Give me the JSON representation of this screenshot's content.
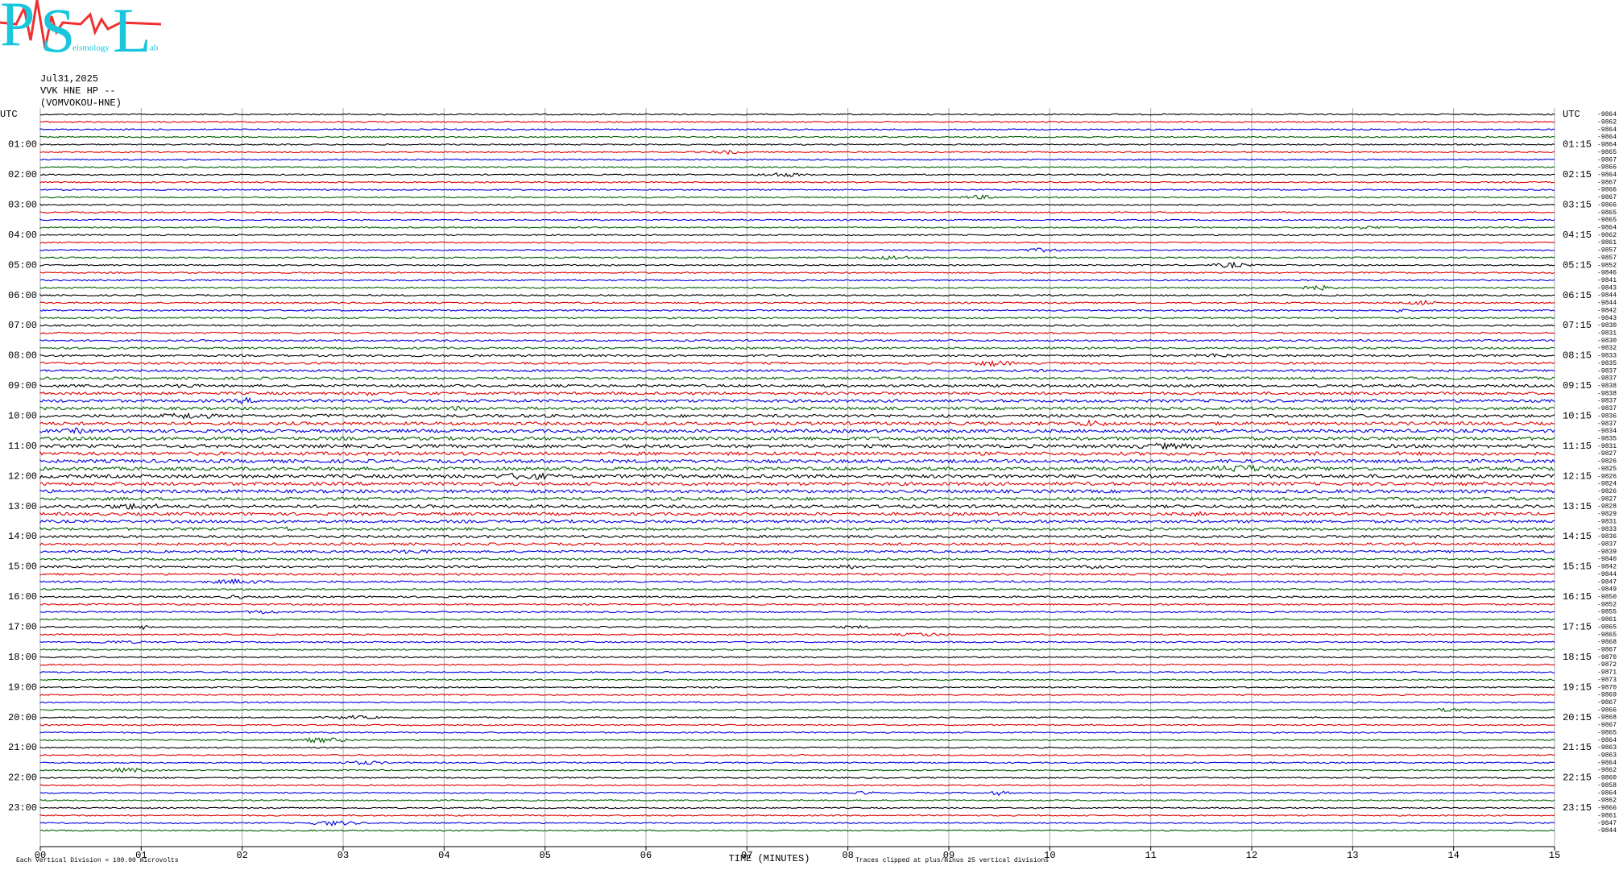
{
  "logo": {
    "letters": [
      "P",
      "S",
      "L"
    ],
    "small": [
      "eismology",
      "ab"
    ]
  },
  "header": {
    "date": "Jul31,2025",
    "station": "VVK HNE HP --",
    "channel": "(VOMVOKOU-HNE)"
  },
  "left_labels": [
    "UTC",
    "01:00",
    "02:00",
    "03:00",
    "04:00",
    "05:00",
    "06:00",
    "07:00",
    "08:00",
    "09:00",
    "10:00",
    "11:00",
    "12:00",
    "13:00",
    "14:00",
    "15:00",
    "16:00",
    "17:00",
    "18:00",
    "19:00",
    "20:00",
    "21:00",
    "22:00",
    "23:00"
  ],
  "right_labels": [
    "UTC",
    "01:15",
    "02:15",
    "03:15",
    "04:15",
    "05:15",
    "06:15",
    "07:15",
    "08:15",
    "09:15",
    "10:15",
    "11:15",
    "12:15",
    "13:15",
    "14:15",
    "15:15",
    "16:15",
    "17:15",
    "18:15",
    "19:15",
    "20:15",
    "21:15",
    "22:15",
    "23:15"
  ],
  "trace_offsets": [
    -9864,
    -9862,
    -9864,
    -9864,
    -9864,
    -9865,
    -9867,
    -9866,
    -9864,
    -9867,
    -9866,
    -9867,
    -9866,
    -9865,
    -9865,
    -9864,
    -9862,
    -9861,
    -9857,
    -9857,
    -9852,
    -9846,
    -9841,
    -9843,
    -9844,
    -9844,
    -9842,
    -9843,
    -9830,
    -9831,
    -9830,
    -9832,
    -9833,
    -9835,
    -9837,
    -9837,
    -9838,
    -9838,
    -9837,
    -9837,
    -9836,
    -9837,
    -9834,
    -9835,
    -9831,
    -9827,
    -9826,
    -9825,
    -9826,
    -9824,
    -9826,
    -9827,
    -9828,
    -9829,
    -9831,
    -9833,
    -9836,
    -9837,
    -9839,
    -9840,
    -9842,
    -9844,
    -9847,
    -9849,
    -9850,
    -9852,
    -9855,
    -9861,
    -9865,
    -9865,
    -9868,
    -9867,
    -9870,
    -9872,
    -9871,
    -9873,
    -9870,
    -9869,
    -9867,
    -9866,
    -9868,
    -9867,
    -9865,
    -9864,
    -9863,
    -9863,
    -9864,
    -9862,
    -9860,
    -9858,
    -9864,
    -9862,
    -9866,
    -9861,
    -9847,
    -9844
  ],
  "x_ticks": [
    "00",
    "01",
    "02",
    "03",
    "04",
    "05",
    "06",
    "07",
    "08",
    "09",
    "10",
    "11",
    "12",
    "13",
    "14",
    "15"
  ],
  "x_axis_label": "TIME (MINUTES)",
  "footer": {
    "division": "Each Vertical Division =  100.00 microvolts",
    "clip": "Traces clipped at plus/minus 25 vertical divisions"
  },
  "trace_colors": [
    "#000000",
    "#e00000",
    "#0000e0",
    "#006000"
  ]
}
